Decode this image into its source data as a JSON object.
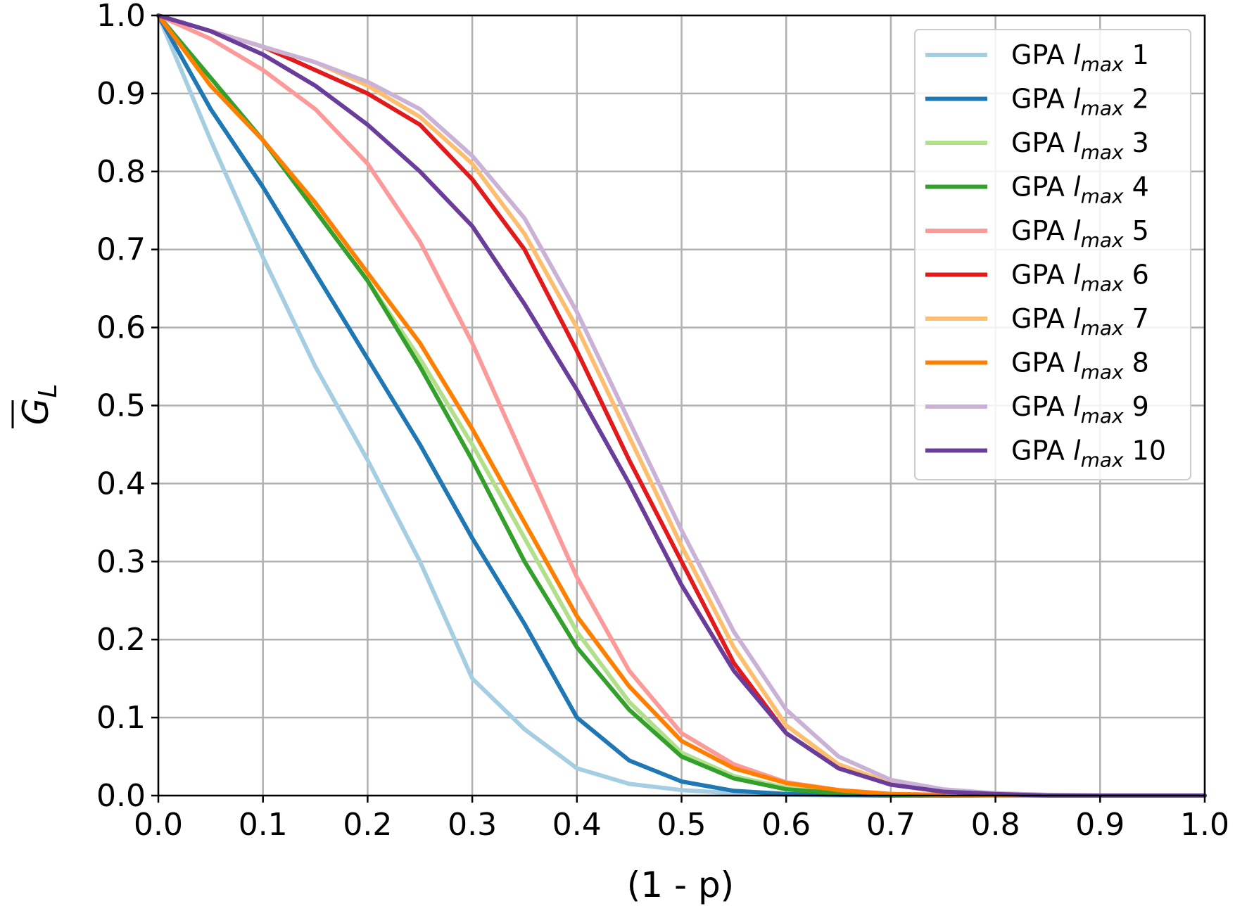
{
  "chart_data": {
    "type": "line",
    "xlabel": "(1 - p)",
    "ylabel": "G",
    "ylabel_subscript": "L",
    "xlim": [
      0.0,
      1.0
    ],
    "ylim": [
      0.0,
      1.0
    ],
    "xticks": [
      "0.0",
      "0.1",
      "0.2",
      "0.3",
      "0.4",
      "0.5",
      "0.6",
      "0.7",
      "0.8",
      "0.9",
      "1.0"
    ],
    "yticks": [
      "0.0",
      "0.1",
      "0.2",
      "0.3",
      "0.4",
      "0.5",
      "0.6",
      "0.7",
      "0.8",
      "0.9",
      "1.0"
    ],
    "grid": true,
    "legend_position": "top-right",
    "x": [
      0.0,
      0.05,
      0.1,
      0.15,
      0.2,
      0.25,
      0.3,
      0.35,
      0.4,
      0.45,
      0.5,
      0.55,
      0.6,
      0.65,
      0.7,
      0.75,
      0.8,
      0.85,
      0.9,
      0.95,
      1.0
    ],
    "series": [
      {
        "label_prefix": "GPA ",
        "label_var": "l",
        "label_sub": "max",
        "label_num": "1",
        "color": "#a6cee3",
        "values": [
          1.0,
          0.84,
          0.69,
          0.55,
          0.43,
          0.3,
          0.15,
          0.085,
          0.035,
          0.015,
          0.007,
          0.003,
          0.001,
          0.0,
          0.0,
          0.0,
          0.0,
          0.0,
          0.0,
          0.0,
          0.0
        ]
      },
      {
        "label_prefix": "GPA ",
        "label_var": "l",
        "label_sub": "max",
        "label_num": "2",
        "color": "#1f78b4",
        "values": [
          1.0,
          0.88,
          0.78,
          0.67,
          0.56,
          0.45,
          0.33,
          0.22,
          0.1,
          0.045,
          0.018,
          0.006,
          0.002,
          0.001,
          0.0,
          0.0,
          0.0,
          0.0,
          0.0,
          0.0,
          0.0
        ]
      },
      {
        "label_prefix": "GPA ",
        "label_var": "l",
        "label_sub": "max",
        "label_num": "3",
        "color": "#b2df8a",
        "values": [
          1.0,
          0.92,
          0.84,
          0.75,
          0.66,
          0.56,
          0.45,
          0.33,
          0.21,
          0.12,
          0.055,
          0.025,
          0.01,
          0.004,
          0.001,
          0.0,
          0.0,
          0.0,
          0.0,
          0.0,
          0.0
        ]
      },
      {
        "label_prefix": "GPA ",
        "label_var": "l",
        "label_sub": "max",
        "label_num": "4",
        "color": "#33a02c",
        "values": [
          1.0,
          0.92,
          0.84,
          0.75,
          0.66,
          0.55,
          0.43,
          0.3,
          0.19,
          0.11,
          0.05,
          0.022,
          0.008,
          0.003,
          0.001,
          0.0,
          0.0,
          0.0,
          0.0,
          0.0,
          0.0
        ]
      },
      {
        "label_prefix": "GPA ",
        "label_var": "l",
        "label_sub": "max",
        "label_num": "5",
        "color": "#fb9a99",
        "values": [
          1.0,
          0.97,
          0.93,
          0.88,
          0.81,
          0.71,
          0.58,
          0.43,
          0.28,
          0.16,
          0.08,
          0.04,
          0.017,
          0.007,
          0.002,
          0.001,
          0.0,
          0.0,
          0.0,
          0.0,
          0.0
        ]
      },
      {
        "label_prefix": "GPA ",
        "label_var": "l",
        "label_sub": "max",
        "label_num": "6",
        "color": "#e31a1c",
        "values": [
          1.0,
          0.98,
          0.96,
          0.93,
          0.9,
          0.86,
          0.79,
          0.7,
          0.57,
          0.43,
          0.3,
          0.17,
          0.08,
          0.035,
          0.015,
          0.006,
          0.002,
          0.0,
          0.0,
          0.0,
          0.0
        ]
      },
      {
        "label_prefix": "GPA ",
        "label_var": "l",
        "label_sub": "max",
        "label_num": "7",
        "color": "#fdbf6f",
        "values": [
          1.0,
          0.98,
          0.96,
          0.94,
          0.91,
          0.87,
          0.81,
          0.72,
          0.6,
          0.46,
          0.32,
          0.19,
          0.09,
          0.04,
          0.016,
          0.006,
          0.002,
          0.0,
          0.0,
          0.0,
          0.0
        ]
      },
      {
        "label_prefix": "GPA ",
        "label_var": "l",
        "label_sub": "max",
        "label_num": "8",
        "color": "#ff7f00",
        "values": [
          1.0,
          0.91,
          0.84,
          0.76,
          0.67,
          0.58,
          0.47,
          0.35,
          0.23,
          0.14,
          0.07,
          0.035,
          0.016,
          0.007,
          0.002,
          0.001,
          0.0,
          0.0,
          0.0,
          0.0,
          0.0
        ]
      },
      {
        "label_prefix": "GPA ",
        "label_var": "l",
        "label_sub": "max",
        "label_num": "9",
        "color": "#cab2d6",
        "values": [
          1.0,
          0.98,
          0.96,
          0.94,
          0.915,
          0.88,
          0.82,
          0.74,
          0.62,
          0.48,
          0.34,
          0.21,
          0.11,
          0.05,
          0.02,
          0.008,
          0.003,
          0.001,
          0.0,
          0.0,
          0.0
        ]
      },
      {
        "label_prefix": "GPA ",
        "label_var": "l",
        "label_sub": "max",
        "label_num": "10",
        "color": "#6a3d9a",
        "values": [
          1.0,
          0.98,
          0.95,
          0.91,
          0.86,
          0.8,
          0.73,
          0.63,
          0.52,
          0.4,
          0.27,
          0.16,
          0.08,
          0.035,
          0.014,
          0.005,
          0.002,
          0.0,
          0.0,
          0.0,
          0.0
        ]
      }
    ]
  }
}
